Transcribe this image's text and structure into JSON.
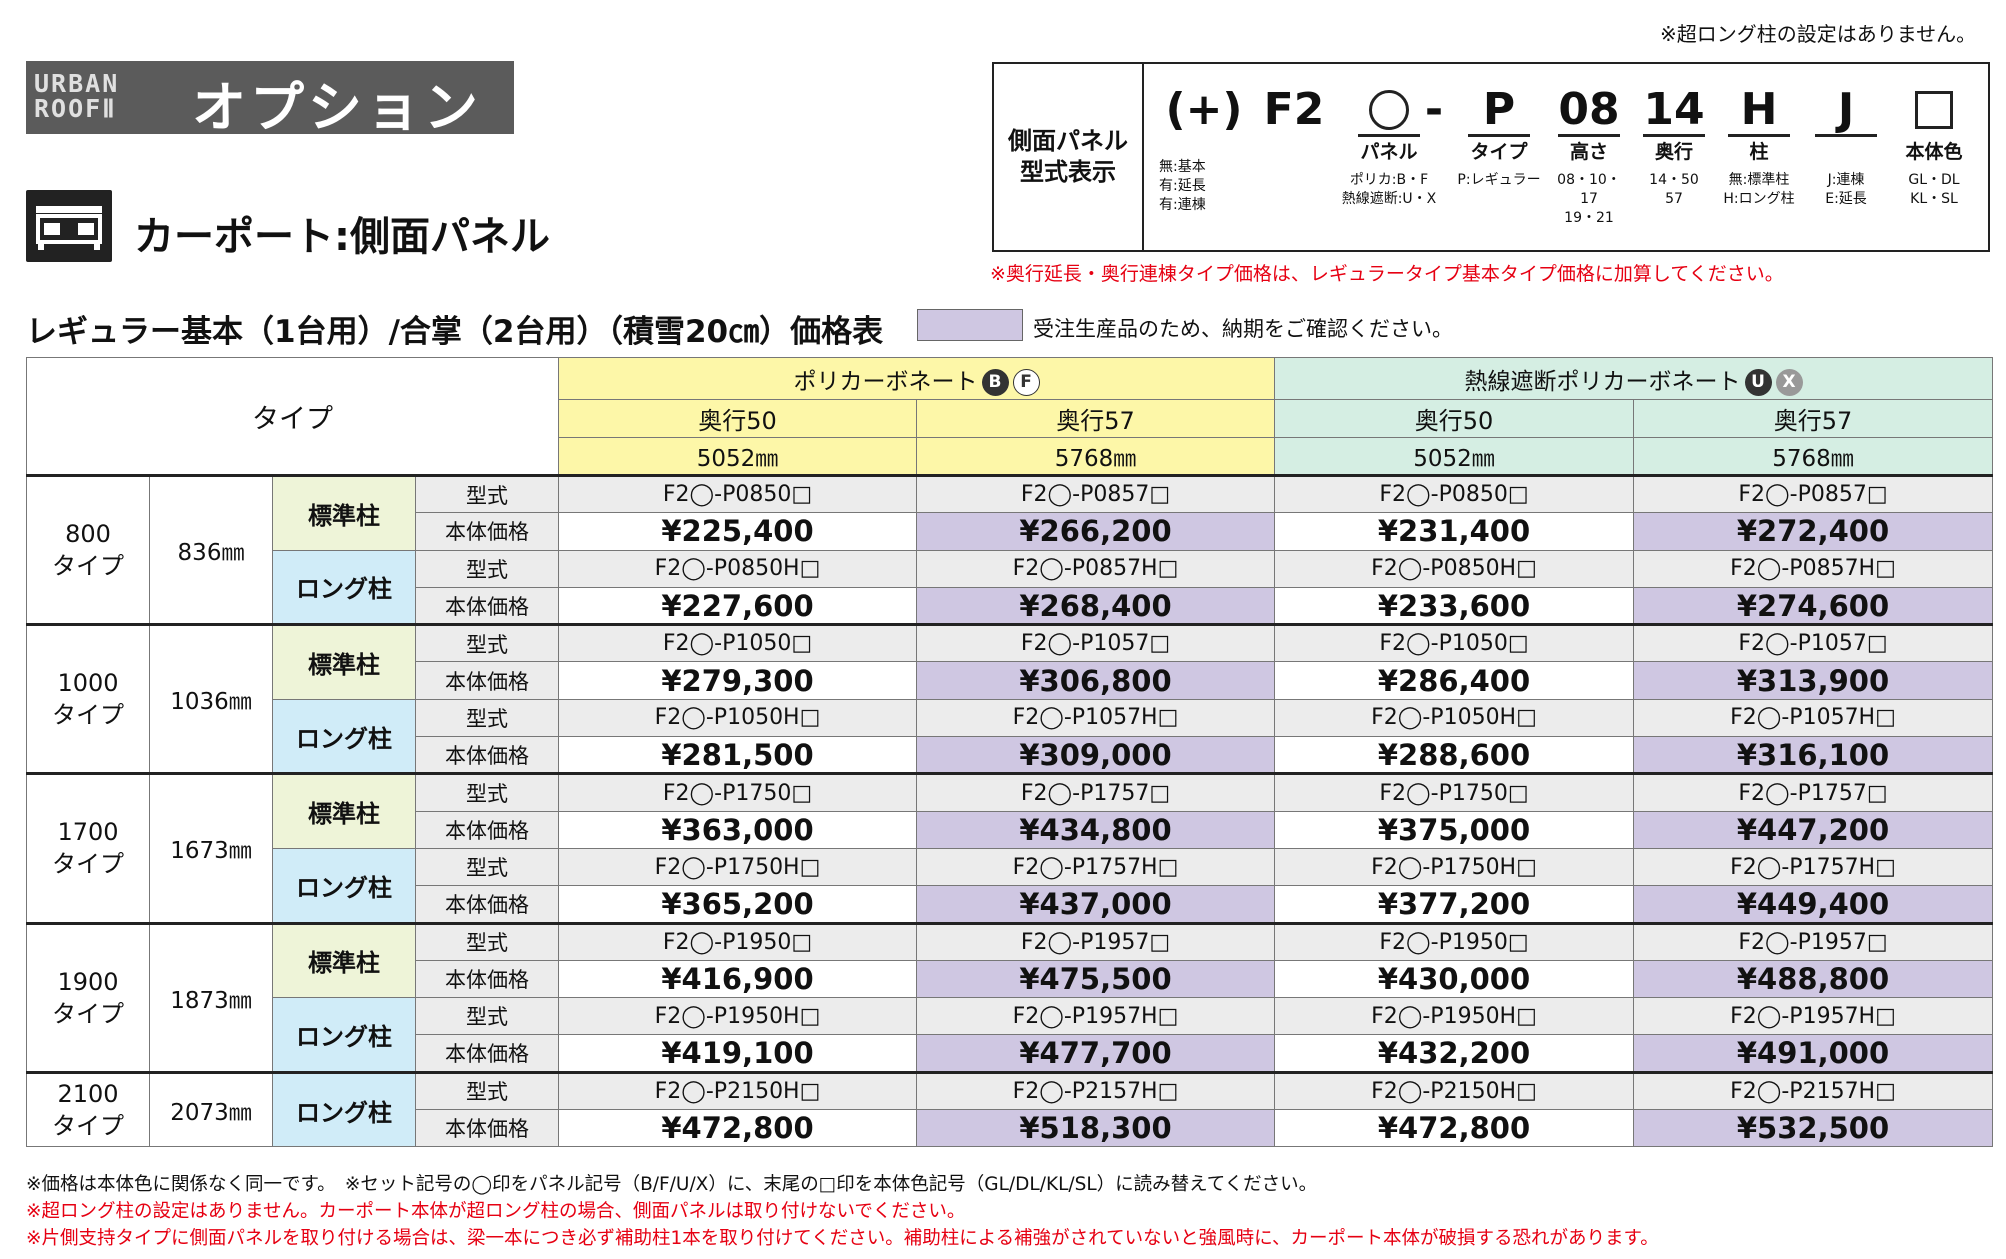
{
  "top_note": "※超ロング柱の設定はありません。",
  "brand": {
    "logo_line1": "URBAN",
    "logo_line2": "ROOFⅡ",
    "title": "オプション"
  },
  "section": {
    "title": "カーポート:側面パネル"
  },
  "model_display": {
    "label": "側面パネル\n型式表示",
    "cols": [
      {
        "big": "(+)",
        "label": "",
        "small": "無:基本\n有:延長\n有:連棟"
      },
      {
        "big": "F2",
        "label": "",
        "small": ""
      },
      {
        "big": "",
        "label": "パネル",
        "small": "ポリカ:B・F\n熱線遮断:U・X"
      },
      {
        "big": "-",
        "label": "",
        "small": ""
      },
      {
        "big": "P",
        "label": "タイプ",
        "small": "P:レギュラー"
      },
      {
        "big": "08",
        "label": "高さ",
        "small": "08・10・17\n19・21"
      },
      {
        "big": "14",
        "label": "奥行",
        "small": "14・50\n57"
      },
      {
        "big": "H",
        "label": "柱",
        "small": "無:標準柱\nH:ロング柱"
      },
      {
        "big": "J",
        "label": "",
        "small": "J:連棟\nE:延長"
      },
      {
        "big": "",
        "label": "本体色",
        "small": "GL・DL\nKL・SL"
      }
    ]
  },
  "red_note": "※奥行延長・奥行連棟タイプ価格は、レギュラータイプ基本タイプ価格に加算してください。",
  "table_title": "レギュラー基本（1台用）/合掌（2台用）（積雪20㎝）価格表",
  "legend": "受注生産品のため、納期をご確認ください。",
  "header": {
    "type_label": "タイプ",
    "groups": [
      {
        "name": "ポリカーボネート",
        "badges": [
          "B",
          "F"
        ]
      },
      {
        "name": "熱線遮断ポリカーボネート",
        "badges": [
          "U",
          "X"
        ]
      }
    ],
    "depths": [
      "奥行50",
      "奥行57",
      "奥行50",
      "奥行57"
    ],
    "mm": [
      "5052㎜",
      "5768㎜",
      "5052㎜",
      "5768㎜"
    ]
  },
  "row_labels": {
    "model": "型式",
    "price": "本体価格"
  },
  "types": [
    {
      "name": "800\nタイプ",
      "height": "836㎜",
      "posts": [
        {
          "post": "標準柱",
          "models": [
            "F2◯-P0850□",
            "F2◯-P0857□",
            "F2◯-P0850□",
            "F2◯-P0857□"
          ],
          "prices": [
            "¥225,400",
            "¥266,200",
            "¥231,400",
            "¥272,400"
          ]
        },
        {
          "post": "ロング柱",
          "models": [
            "F2◯-P0850H□",
            "F2◯-P0857H□",
            "F2◯-P0850H□",
            "F2◯-P0857H□"
          ],
          "prices": [
            "¥227,600",
            "¥268,400",
            "¥233,600",
            "¥274,600"
          ]
        }
      ]
    },
    {
      "name": "1000\nタイプ",
      "height": "1036㎜",
      "posts": [
        {
          "post": "標準柱",
          "models": [
            "F2◯-P1050□",
            "F2◯-P1057□",
            "F2◯-P1050□",
            "F2◯-P1057□"
          ],
          "prices": [
            "¥279,300",
            "¥306,800",
            "¥286,400",
            "¥313,900"
          ]
        },
        {
          "post": "ロング柱",
          "models": [
            "F2◯-P1050H□",
            "F2◯-P1057H□",
            "F2◯-P1050H□",
            "F2◯-P1057H□"
          ],
          "prices": [
            "¥281,500",
            "¥309,000",
            "¥288,600",
            "¥316,100"
          ]
        }
      ]
    },
    {
      "name": "1700\nタイプ",
      "height": "1673㎜",
      "posts": [
        {
          "post": "標準柱",
          "models": [
            "F2◯-P1750□",
            "F2◯-P1757□",
            "F2◯-P1750□",
            "F2◯-P1757□"
          ],
          "prices": [
            "¥363,000",
            "¥434,800",
            "¥375,000",
            "¥447,200"
          ]
        },
        {
          "post": "ロング柱",
          "models": [
            "F2◯-P1750H□",
            "F2◯-P1757H□",
            "F2◯-P1750H□",
            "F2◯-P1757H□"
          ],
          "prices": [
            "¥365,200",
            "¥437,000",
            "¥377,200",
            "¥449,400"
          ]
        }
      ]
    },
    {
      "name": "1900\nタイプ",
      "height": "1873㎜",
      "posts": [
        {
          "post": "標準柱",
          "models": [
            "F2◯-P1950□",
            "F2◯-P1957□",
            "F2◯-P1950□",
            "F2◯-P1957□"
          ],
          "prices": [
            "¥416,900",
            "¥475,500",
            "¥430,000",
            "¥488,800"
          ]
        },
        {
          "post": "ロング柱",
          "models": [
            "F2◯-P1950H□",
            "F2◯-P1957H□",
            "F2◯-P1950H□",
            "F2◯-P1957H□"
          ],
          "prices": [
            "¥419,100",
            "¥477,700",
            "¥432,200",
            "¥491,000"
          ]
        }
      ]
    },
    {
      "name": "2100\nタイプ",
      "height": "2073㎜",
      "posts": [
        {
          "post": "ロング柱",
          "models": [
            "F2◯-P2150H□",
            "F2◯-P2157H□",
            "F2◯-P2150H□",
            "F2◯-P2157H□"
          ],
          "prices": [
            "¥472,800",
            "¥518,300",
            "¥472,800",
            "¥532,500"
          ]
        }
      ]
    }
  ],
  "footnotes": [
    {
      "text": "※価格は本体色に関係なく同一です。　※セット記号の◯印をパネル記号（B/F/U/X）に、末尾の□印を本体色記号（GL/DL/KL/SL）に読み替えてください。",
      "color": "#111111"
    },
    {
      "text": "※超ロング柱の設定はありません。カーポート本体が超ロング柱の場合、側面パネルは取り付けないでください。",
      "color": "#e60012"
    },
    {
      "text": "※片側支持タイプに側面パネルを取り付ける場合は、梁一本につき必ず補助柱1本を取り付けてください。補助柱による補強がされていないと強風時に、カーポート本体が破損する恐れがあります。",
      "color": "#e60012"
    }
  ]
}
